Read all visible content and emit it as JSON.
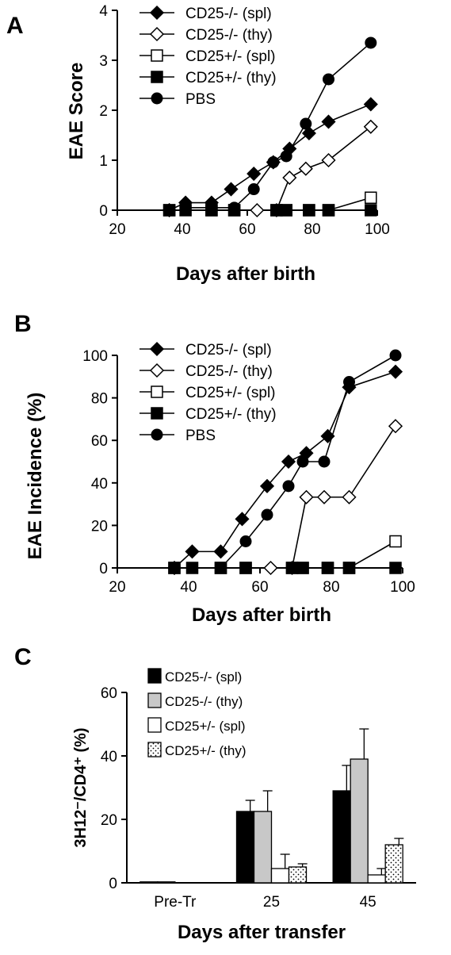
{
  "panels": {
    "a": "A",
    "b": "B",
    "c": "C"
  },
  "chart_data": [
    {
      "type": "line",
      "panel": "A",
      "xlabel": "Days after birth",
      "ylabel": "EAE Score",
      "xlim": [
        20,
        100
      ],
      "ylim": [
        0,
        4
      ],
      "xticks": [
        "20",
        "40",
        "60",
        "80",
        "100"
      ],
      "yticks": [
        "0",
        "1",
        "2",
        "3",
        "4"
      ],
      "legend_position": "top-left",
      "series": [
        {
          "name": "CD25-/- (spl)",
          "marker": "diamond-filled",
          "x": [
            36,
            41,
            49,
            55,
            62,
            68,
            73,
            79,
            85,
            98
          ],
          "y": [
            0,
            0.15,
            0.15,
            0.42,
            0.73,
            0.96,
            1.23,
            1.54,
            1.77,
            2.12
          ]
        },
        {
          "name": "CD25-/- (thy)",
          "marker": "diamond-open",
          "x": [
            36,
            63,
            69,
            73,
            78,
            85,
            98
          ],
          "y": [
            0,
            0,
            0,
            0.65,
            0.83,
            1.0,
            1.67
          ]
        },
        {
          "name": "CD25+/- (spl)",
          "marker": "square-open",
          "x": [
            36,
            49,
            56,
            69,
            72,
            79,
            85,
            98
          ],
          "y": [
            0,
            0,
            0,
            0,
            0,
            0,
            0,
            0.25
          ]
        },
        {
          "name": "CD25+/- (thy)",
          "marker": "square-filled",
          "x": [
            36,
            41,
            49,
            56,
            69,
            72,
            79,
            85,
            98
          ],
          "y": [
            0,
            0,
            0,
            0,
            0,
            0,
            0,
            0,
            0
          ]
        },
        {
          "name": "PBS",
          "marker": "circle-filled",
          "x": [
            41,
            49,
            56,
            62,
            68,
            72,
            78,
            85,
            98
          ],
          "y": [
            0.05,
            0.05,
            0.05,
            0.42,
            0.96,
            1.08,
            1.73,
            2.62,
            3.35
          ]
        }
      ]
    },
    {
      "type": "line",
      "panel": "B",
      "xlabel": "Days after birth",
      "ylabel": "EAE Incidence (%)",
      "xlim": [
        20,
        100
      ],
      "ylim": [
        0,
        100
      ],
      "xticks": [
        "20",
        "40",
        "60",
        "80",
        "100"
      ],
      "yticks": [
        "0",
        "20",
        "40",
        "60",
        "80",
        "100"
      ],
      "legend_position": "top-left",
      "series": [
        {
          "name": "CD25-/- (spl)",
          "marker": "diamond-filled",
          "x": [
            36,
            41,
            49,
            55,
            62,
            68,
            73,
            79,
            85,
            98
          ],
          "y": [
            0,
            7.7,
            7.7,
            23,
            38.5,
            50,
            54,
            62,
            85,
            92.3
          ]
        },
        {
          "name": "CD25-/- (thy)",
          "marker": "diamond-open",
          "x": [
            36,
            63,
            69,
            73,
            78,
            85,
            98
          ],
          "y": [
            0,
            0,
            0,
            33.3,
            33.3,
            33.3,
            66.7
          ]
        },
        {
          "name": "CD25+/- (spl)",
          "marker": "square-open",
          "x": [
            36,
            49,
            56,
            69,
            72,
            79,
            85,
            98
          ],
          "y": [
            0,
            0,
            0,
            0,
            0,
            0,
            0,
            12.5
          ]
        },
        {
          "name": "CD25+/- (thy)",
          "marker": "square-filled",
          "x": [
            36,
            41,
            49,
            56,
            69,
            72,
            79,
            85,
            98
          ],
          "y": [
            0,
            0,
            0,
            0,
            0,
            0,
            0,
            0,
            0
          ]
        },
        {
          "name": "PBS",
          "marker": "circle-filled",
          "x": [
            41,
            49,
            56,
            62,
            68,
            72,
            78,
            85,
            98
          ],
          "y": [
            0,
            0,
            12.5,
            25,
            38.5,
            50,
            50,
            87.5,
            100
          ]
        }
      ]
    },
    {
      "type": "bar",
      "panel": "C",
      "xlabel": "Days after transfer",
      "ylabel": "3H12⁻/CD4⁺ (%)",
      "ylim": [
        0,
        60
      ],
      "yticks": [
        "0",
        "20",
        "40",
        "60"
      ],
      "categories": [
        "Pre-Tr",
        "25",
        "45"
      ],
      "legend_position": "top-left",
      "series": [
        {
          "name": "CD25-/- (spl)",
          "fill": "#000000",
          "pattern": "solid",
          "values": [
            0.3,
            22.5,
            29
          ],
          "error": [
            0,
            3.5,
            8
          ]
        },
        {
          "name": "CD25-/- (thy)",
          "fill": "#c8c8c8",
          "pattern": "solid",
          "values": [
            0.3,
            22.5,
            39
          ],
          "error": [
            0,
            6.5,
            9.5
          ]
        },
        {
          "name": "CD25+/- (spl)",
          "fill": "#ffffff",
          "pattern": "solid",
          "values": [
            0,
            4.5,
            2.5
          ],
          "error": [
            0,
            4.5,
            2
          ]
        },
        {
          "name": "CD25+/- (thy)",
          "fill": "#ffffff",
          "pattern": "dots",
          "values": [
            0,
            5,
            12
          ],
          "error": [
            0,
            1,
            2
          ]
        }
      ]
    }
  ]
}
